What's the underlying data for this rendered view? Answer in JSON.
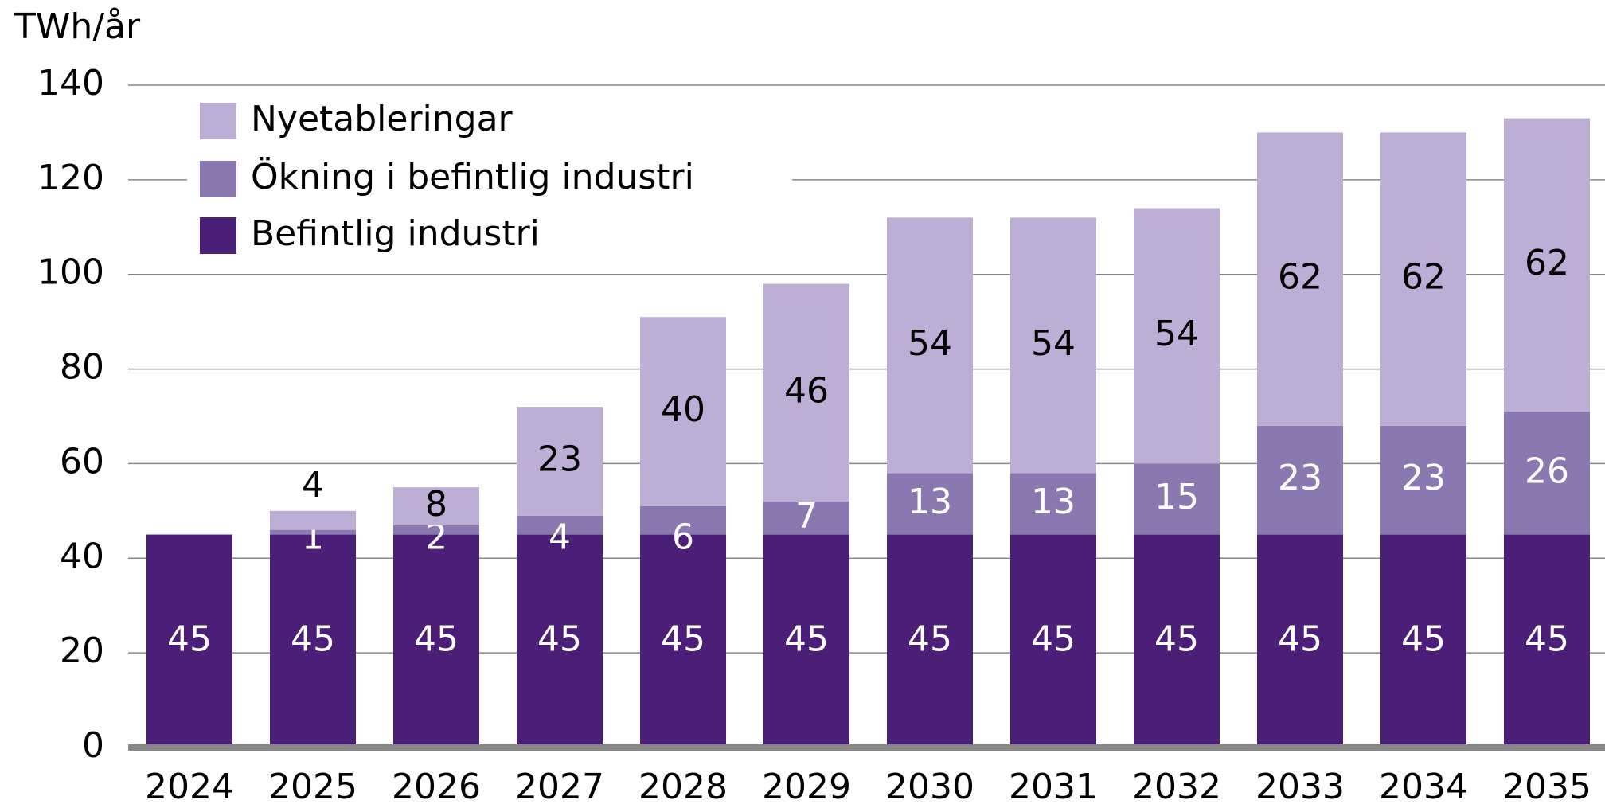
{
  "chart_data": {
    "type": "stacked_bar",
    "y_label": "TWh/år",
    "categories": [
      "2024",
      "2025",
      "2026",
      "2027",
      "2028",
      "2029",
      "2030",
      "2031",
      "2032",
      "2033",
      "2034",
      "2035"
    ],
    "series": [
      {
        "name": "Befintlig industri",
        "color": "#4b1f78",
        "label_color": "#ffffff",
        "values": [
          45,
          45,
          45,
          45,
          45,
          45,
          45,
          45,
          45,
          45,
          45,
          45
        ]
      },
      {
        "name": "Ökning i befintlig industri",
        "color": "#8c78b0",
        "label_color": "#ffffff",
        "values": [
          null,
          1,
          2,
          4,
          6,
          7,
          13,
          13,
          15,
          23,
          23,
          26
        ]
      },
      {
        "name": "Nyetableringar",
        "color": "#bcaed4",
        "label_color": "#000000",
        "values": [
          null,
          4,
          8,
          23,
          40,
          46,
          54,
          54,
          54,
          62,
          62,
          62
        ]
      }
    ],
    "ylim": [
      0,
      140
    ],
    "yticks": [
      0,
      20,
      40,
      60,
      80,
      100,
      120,
      140
    ],
    "grid": true,
    "legend": "upper left"
  }
}
